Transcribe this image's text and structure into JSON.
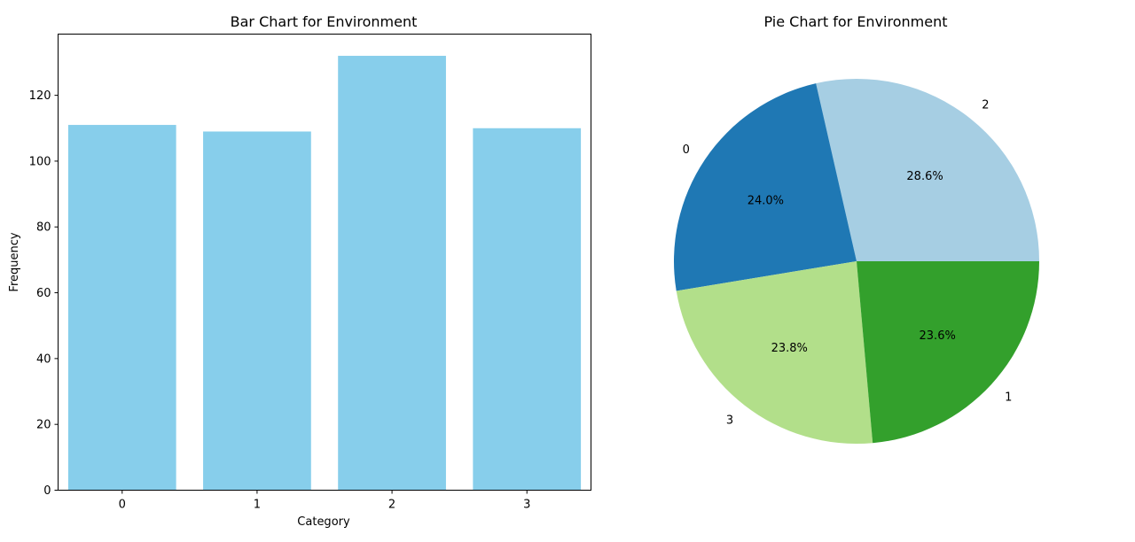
{
  "chart_data": [
    {
      "type": "bar",
      "title": "Bar Chart for Environment",
      "xlabel": "Category",
      "ylabel": "Frequency",
      "categories": [
        "0",
        "1",
        "2",
        "3"
      ],
      "values": [
        111,
        109,
        132,
        110
      ],
      "ylim": [
        0,
        138.6
      ],
      "yticks": [
        0,
        20,
        40,
        60,
        80,
        100,
        120
      ],
      "colors": {
        "bar": "#87CEEB"
      },
      "grid": false
    },
    {
      "type": "pie",
      "title": "Pie Chart for Environment",
      "slices": [
        {
          "label": "2",
          "value": 132,
          "pct_label": "28.6%",
          "color": "#a6cee3"
        },
        {
          "label": "0",
          "value": 111,
          "pct_label": "24.0%",
          "color": "#1f78b4"
        },
        {
          "label": "3",
          "value": 110,
          "pct_label": "23.8%",
          "color": "#b2df8a"
        },
        {
          "label": "1",
          "value": 109,
          "pct_label": "23.6%",
          "color": "#33a02c"
        }
      ]
    }
  ]
}
